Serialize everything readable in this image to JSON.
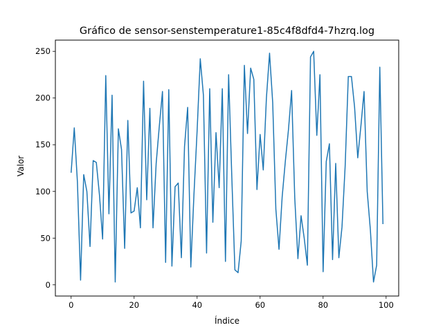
{
  "chart_data": {
    "type": "line",
    "title": "Gráfico de sensor-senstemperature1-85c4f8dfd4-7hzrq.log",
    "xlabel": "Índice",
    "ylabel": "Valor",
    "xlim": [
      -5,
      104
    ],
    "ylim": [
      -12,
      262
    ],
    "xticks": [
      0,
      20,
      40,
      60,
      80,
      100
    ],
    "yticks": [
      0,
      50,
      100,
      150,
      200,
      250
    ],
    "grid": false,
    "legend": "none",
    "line_color": "#1f77b4",
    "series": [
      {
        "values": [
          120,
          168,
          110,
          5,
          118,
          100,
          41,
          133,
          131,
          96,
          49,
          224,
          76,
          203,
          3,
          167,
          145,
          39,
          176,
          77,
          79,
          104,
          61,
          218,
          91,
          189,
          61,
          130,
          170,
          207,
          24,
          209,
          20,
          105,
          109,
          29,
          148,
          190,
          19,
          97,
          165,
          242,
          203,
          34,
          210,
          67,
          163,
          104,
          210,
          25,
          225,
          117,
          16,
          13,
          47,
          235,
          162,
          232,
          220,
          102,
          161,
          123,
          200,
          248,
          195,
          81,
          38,
          94,
          132,
          166,
          208,
          93,
          28,
          74,
          50,
          21,
          244,
          250,
          160,
          225,
          14,
          132,
          151,
          27,
          130,
          29,
          62,
          127,
          223,
          223,
          190,
          136,
          170,
          207,
          100,
          59,
          3,
          21,
          233,
          65
        ]
      }
    ]
  }
}
